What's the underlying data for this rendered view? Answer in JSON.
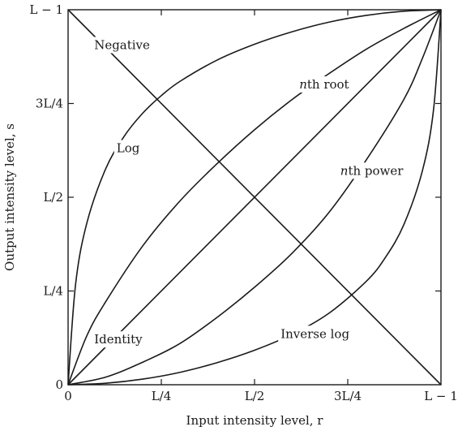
{
  "chart_data": {
    "type": "line",
    "title": "",
    "xlabel": "Input intensity level, r",
    "ylabel": "Output intensity level, s",
    "xlim": [
      0,
      1
    ],
    "ylim": [
      0,
      1
    ],
    "grid": false,
    "x_ticks": [
      {
        "value": 0,
        "label": "0"
      },
      {
        "value": 0.25,
        "label": "L/4"
      },
      {
        "value": 0.5,
        "label": "L/2"
      },
      {
        "value": 0.75,
        "label": "3L/4"
      },
      {
        "value": 1,
        "label": "L − 1"
      }
    ],
    "y_ticks": [
      {
        "value": 0,
        "label": "0"
      },
      {
        "value": 0.25,
        "label": "L/4"
      },
      {
        "value": 0.5,
        "label": "L/2"
      },
      {
        "value": 0.75,
        "label": "3L/4"
      },
      {
        "value": 1,
        "label": "L − 1"
      }
    ],
    "series": [
      {
        "name": "Negative",
        "x": [
          0,
          1
        ],
        "y": [
          1,
          0
        ]
      },
      {
        "name": "Identity",
        "x": [
          0,
          1
        ],
        "y": [
          0,
          1
        ]
      },
      {
        "name": "Log",
        "x": [
          0,
          0.02,
          0.05,
          0.1,
          0.15,
          0.2,
          0.25,
          0.3,
          0.4,
          0.5,
          0.6,
          0.7,
          0.8,
          0.9,
          1
        ],
        "y": [
          0,
          0.267,
          0.43,
          0.574,
          0.662,
          0.724,
          0.771,
          0.809,
          0.866,
          0.908,
          0.941,
          0.967,
          0.985,
          0.996,
          1
        ]
      },
      {
        "name": "nth root",
        "x": [
          0,
          0.05,
          0.1,
          0.2,
          0.3,
          0.4,
          0.5,
          0.6,
          0.7,
          0.8,
          0.9,
          1
        ],
        "y": [
          0,
          0.13,
          0.22,
          0.37,
          0.49,
          0.59,
          0.68,
          0.76,
          0.83,
          0.895,
          0.95,
          1
        ]
      },
      {
        "name": "nth power",
        "x": [
          0,
          0.1,
          0.2,
          0.3,
          0.4,
          0.5,
          0.6,
          0.7,
          0.8,
          0.9,
          0.95,
          1
        ],
        "y": [
          0,
          0.02,
          0.06,
          0.11,
          0.18,
          0.26,
          0.35,
          0.46,
          0.6,
          0.76,
          0.87,
          1
        ]
      },
      {
        "name": "Inverse log",
        "x": [
          0,
          0.1,
          0.2,
          0.3,
          0.4,
          0.5,
          0.6,
          0.7,
          0.8,
          0.85,
          0.9,
          0.95,
          0.98,
          1
        ],
        "y": [
          0,
          0.004,
          0.015,
          0.033,
          0.059,
          0.092,
          0.134,
          0.191,
          0.276,
          0.338,
          0.426,
          0.57,
          0.733,
          1
        ]
      }
    ],
    "annotations": [
      {
        "text": "Negative",
        "italic_prefix": "",
        "rest": "Negative",
        "x": 0.07,
        "y": 0.895
      },
      {
        "text": "nth root",
        "italic_prefix": "n",
        "rest": "th root",
        "x": 0.62,
        "y": 0.79
      },
      {
        "text": "Log",
        "italic_prefix": "",
        "rest": "Log",
        "x": 0.13,
        "y": 0.62
      },
      {
        "text": "nth power",
        "italic_prefix": "n",
        "rest": "th power",
        "x": 0.73,
        "y": 0.56
      },
      {
        "text": "Identity",
        "italic_prefix": "",
        "rest": "Identity",
        "x": 0.07,
        "y": 0.11
      },
      {
        "text": "Inverse log",
        "italic_prefix": "",
        "rest": "Inverse log",
        "x": 0.57,
        "y": 0.125
      }
    ]
  }
}
